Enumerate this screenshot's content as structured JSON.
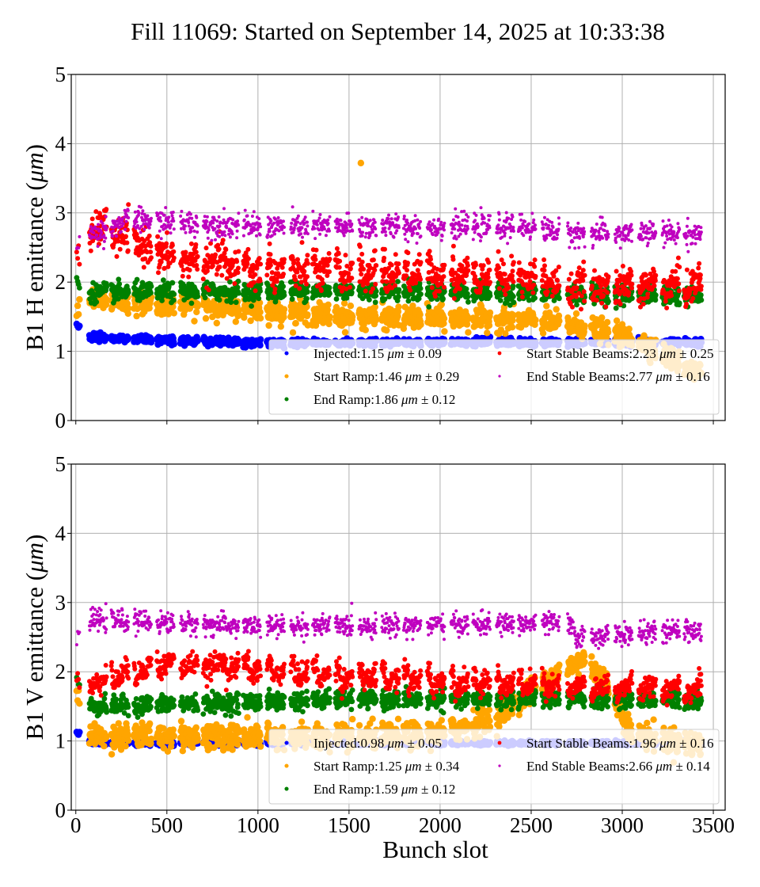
{
  "title": "Fill 11069: Started on September 14, 2025 at 10:33:38",
  "chart_data": [
    {
      "type": "scatter",
      "panel": "top",
      "ylabel": "B1 H emittance",
      "ylabel_unit": "μm",
      "xlabel": "",
      "xlim": [
        -25,
        3565
      ],
      "ylim": [
        0,
        5
      ],
      "xticks": [
        0,
        500,
        1000,
        1500,
        2000,
        2500,
        3000,
        3500
      ],
      "yticks": [
        0,
        1,
        2,
        3,
        4,
        5
      ],
      "show_xtick_labels": false,
      "grid": true,
      "legend_position": "lower-right",
      "series": [
        {
          "name": "Injected",
          "mean": 1.15,
          "std": 0.09,
          "color": "#0000ff",
          "label": "Injected:1.15",
          "err": "0.09"
        },
        {
          "name": "Start Ramp",
          "mean": 1.46,
          "std": 0.29,
          "color": "#ffa500",
          "label": "Start Ramp:1.46",
          "err": "0.29"
        },
        {
          "name": "End Ramp",
          "mean": 1.86,
          "std": 0.12,
          "color": "#008000",
          "label": "End Ramp:1.86",
          "err": "0.12"
        },
        {
          "name": "Start Stable Beams",
          "mean": 2.23,
          "std": 0.25,
          "color": "#ff0000",
          "label": "Start Stable Beams:2.23",
          "err": "0.25"
        },
        {
          "name": "End Stable Beams",
          "mean": 2.77,
          "std": 0.16,
          "color": "#bf00bf",
          "label": "End Stable Beams:2.77",
          "err": "0.16"
        }
      ],
      "trend": {
        "Injected": [
          [
            0,
            1.4
          ],
          [
            80,
            1.2
          ],
          [
            1000,
            1.12
          ],
          [
            2000,
            1.13
          ],
          [
            3400,
            1.13
          ]
        ],
        "Start Ramp": [
          [
            0,
            1.55
          ],
          [
            80,
            1.75
          ],
          [
            800,
            1.65
          ],
          [
            1500,
            1.5
          ],
          [
            2500,
            1.45
          ],
          [
            2800,
            1.35
          ],
          [
            3100,
            1.15
          ],
          [
            3400,
            0.7
          ]
        ],
        "End Ramp": [
          [
            0,
            2.0
          ],
          [
            80,
            1.85
          ],
          [
            1500,
            1.88
          ],
          [
            3400,
            1.8
          ]
        ],
        "Start Stable Beams": [
          [
            0,
            2.7
          ],
          [
            150,
            2.8
          ],
          [
            500,
            2.4
          ],
          [
            1000,
            2.2
          ],
          [
            2500,
            2.1
          ],
          [
            2700,
            1.95
          ],
          [
            3400,
            1.95
          ]
        ],
        "End Stable Beams": [
          [
            0,
            2.6
          ],
          [
            300,
            2.9
          ],
          [
            1000,
            2.8
          ],
          [
            2500,
            2.8
          ],
          [
            2700,
            2.7
          ],
          [
            3400,
            2.7
          ]
        ]
      },
      "outliers": [
        {
          "series": "Start Ramp",
          "x": 1565,
          "y": 3.72
        }
      ]
    },
    {
      "type": "scatter",
      "panel": "bottom",
      "ylabel": "B1 V emittance",
      "ylabel_unit": "μm",
      "xlabel": "Bunch slot",
      "xlim": [
        -25,
        3565
      ],
      "ylim": [
        0,
        5
      ],
      "xticks": [
        0,
        500,
        1000,
        1500,
        2000,
        2500,
        3000,
        3500
      ],
      "yticks": [
        0,
        1,
        2,
        3,
        4,
        5
      ],
      "show_xtick_labels": true,
      "grid": true,
      "legend_position": "lower-right",
      "series": [
        {
          "name": "Injected",
          "mean": 0.98,
          "std": 0.05,
          "color": "#0000ff",
          "label": "Injected:0.98",
          "err": "0.05"
        },
        {
          "name": "Start Ramp",
          "mean": 1.25,
          "std": 0.34,
          "color": "#ffa500",
          "label": "Start Ramp:1.25",
          "err": "0.34"
        },
        {
          "name": "End Ramp",
          "mean": 1.59,
          "std": 0.12,
          "color": "#008000",
          "label": "End Ramp:1.59",
          "err": "0.12"
        },
        {
          "name": "Start Stable Beams",
          "mean": 1.96,
          "std": 0.16,
          "color": "#ff0000",
          "label": "Start Stable Beams:1.96",
          "err": "0.16"
        },
        {
          "name": "End Stable Beams",
          "mean": 2.66,
          "std": 0.14,
          "color": "#bf00bf",
          "label": "End Stable Beams:2.66",
          "err": "0.14"
        }
      ],
      "trend": {
        "Injected": [
          [
            0,
            1.15
          ],
          [
            80,
            0.97
          ],
          [
            3400,
            0.97
          ]
        ],
        "Start Ramp": [
          [
            0,
            1.65
          ],
          [
            80,
            1.08
          ],
          [
            1500,
            1.05
          ],
          [
            2000,
            1.1
          ],
          [
            2300,
            1.35
          ],
          [
            2600,
            1.9
          ],
          [
            2800,
            2.2
          ],
          [
            2950,
            1.7
          ],
          [
            3050,
            1.1
          ],
          [
            3400,
            0.95
          ]
        ],
        "End Ramp": [
          [
            0,
            1.9
          ],
          [
            80,
            1.5
          ],
          [
            1500,
            1.6
          ],
          [
            3400,
            1.6
          ]
        ],
        "Start Stable Beams": [
          [
            0,
            2.2
          ],
          [
            80,
            1.85
          ],
          [
            500,
            2.15
          ],
          [
            1500,
            1.95
          ],
          [
            2700,
            1.8
          ],
          [
            3400,
            1.75
          ]
        ],
        "End Stable Beams": [
          [
            0,
            2.5
          ],
          [
            100,
            2.75
          ],
          [
            1000,
            2.65
          ],
          [
            2700,
            2.7
          ],
          [
            2750,
            2.5
          ],
          [
            3400,
            2.6
          ]
        ]
      },
      "outliers": []
    }
  ],
  "trains": {
    "singles": [
      5,
      10,
      15,
      20
    ],
    "starts": [
      75,
      195,
      320,
      445,
      575,
      700,
      800,
      920,
      1050,
      1180,
      1300,
      1425,
      1555,
      1680,
      1800,
      1930,
      2060,
      2180,
      2310,
      2430,
      2560,
      2700,
      2830,
      2960,
      3090,
      3220,
      3340
    ],
    "length": 95
  }
}
